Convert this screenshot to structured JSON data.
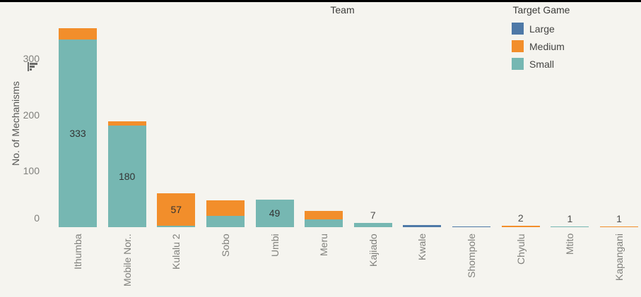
{
  "window": {
    "top_edge_color": "#000000",
    "background": "#f5f4ef"
  },
  "column_header": {
    "label": "Team"
  },
  "legend": {
    "title": "Target Game",
    "items": [
      {
        "label": "Large",
        "color": "#4e79a7"
      },
      {
        "label": "Medium",
        "color": "#f28e2b"
      },
      {
        "label": "Small",
        "color": "#76b7b2"
      }
    ]
  },
  "y_axis": {
    "title": "No. of Mechanisms",
    "ticks": [
      0,
      100,
      200,
      300
    ]
  },
  "icons": {
    "y_axis_sort": "sort-descending-icon"
  },
  "chart_data": {
    "type": "bar",
    "stacked": true,
    "title": "Team",
    "xlabel": "Team",
    "ylabel": "No. of Mechanisms",
    "ylim": [
      0,
      397
    ],
    "grid": false,
    "legend_position": "top-right",
    "legend_title": "Target Game",
    "categories": [
      "Ithumba",
      "Mobile Nor..",
      "Kulalu 2",
      "Sobo",
      "Umbi",
      "Meru",
      "Kajiado",
      "Kwale",
      "Shompole",
      "Chyulu",
      "Mtito",
      "Kapangani"
    ],
    "series": [
      {
        "name": "Large",
        "color": "#4e79a7",
        "values": [
          0,
          0,
          0,
          0,
          0,
          0,
          0,
          4,
          1,
          0,
          0,
          0
        ]
      },
      {
        "name": "Medium",
        "color": "#f28e2b",
        "values": [
          21,
          8,
          57,
          28,
          0,
          15,
          0,
          0,
          0,
          2,
          0,
          1
        ]
      },
      {
        "name": "Small",
        "color": "#76b7b2",
        "values": [
          333,
          180,
          3,
          20,
          49,
          14,
          7,
          0,
          0,
          0,
          1,
          0
        ]
      }
    ],
    "stack_order_bottom_to_top": [
      "Small",
      "Medium",
      "Large"
    ],
    "bar_labels": [
      {
        "category": "Ithumba",
        "text": "333",
        "segment": "Small",
        "placement": "inside"
      },
      {
        "category": "Mobile Nor..",
        "text": "180",
        "segment": "Small",
        "placement": "inside"
      },
      {
        "category": "Kulalu 2",
        "text": "57",
        "segment": "Medium",
        "placement": "inside"
      },
      {
        "category": "Umbi",
        "text": "49",
        "segment": "Small",
        "placement": "inside"
      },
      {
        "category": "Kajiado",
        "text": "7",
        "placement": "above"
      },
      {
        "category": "Chyulu",
        "text": "2",
        "placement": "above"
      },
      {
        "category": "Mtito",
        "text": "1",
        "placement": "above"
      },
      {
        "category": "Kapangani",
        "text": "1",
        "placement": "above"
      }
    ]
  }
}
